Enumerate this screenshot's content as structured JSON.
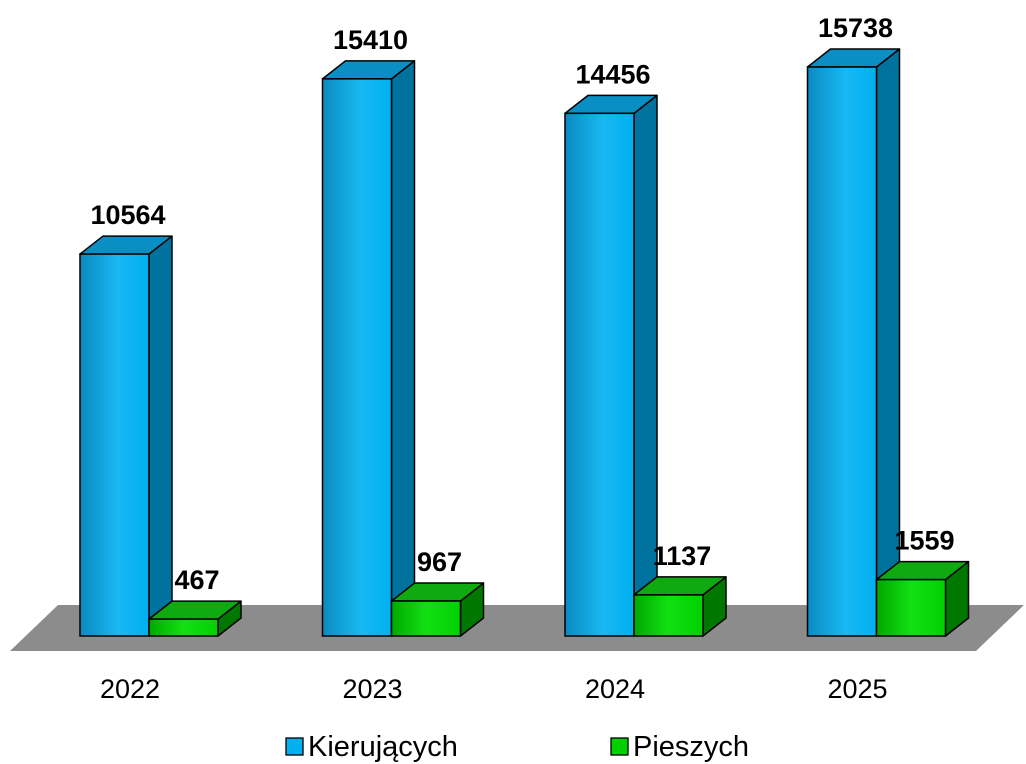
{
  "chart_data": {
    "type": "bar",
    "title": "",
    "xlabel": "",
    "ylabel": "",
    "categories": [
      "2022",
      "2023",
      "2024",
      "2025"
    ],
    "series": [
      {
        "name": "Kierujących",
        "values": [
          10564,
          15410,
          14456,
          15738
        ],
        "color": "#00B0F0"
      },
      {
        "name": "Pieszych",
        "values": [
          467,
          967,
          1137,
          1559
        ],
        "color": "#00E000"
      }
    ],
    "ylim": [
      0,
      15738
    ],
    "grid": false,
    "legend": "bottom",
    "style": "3d-columns"
  }
}
